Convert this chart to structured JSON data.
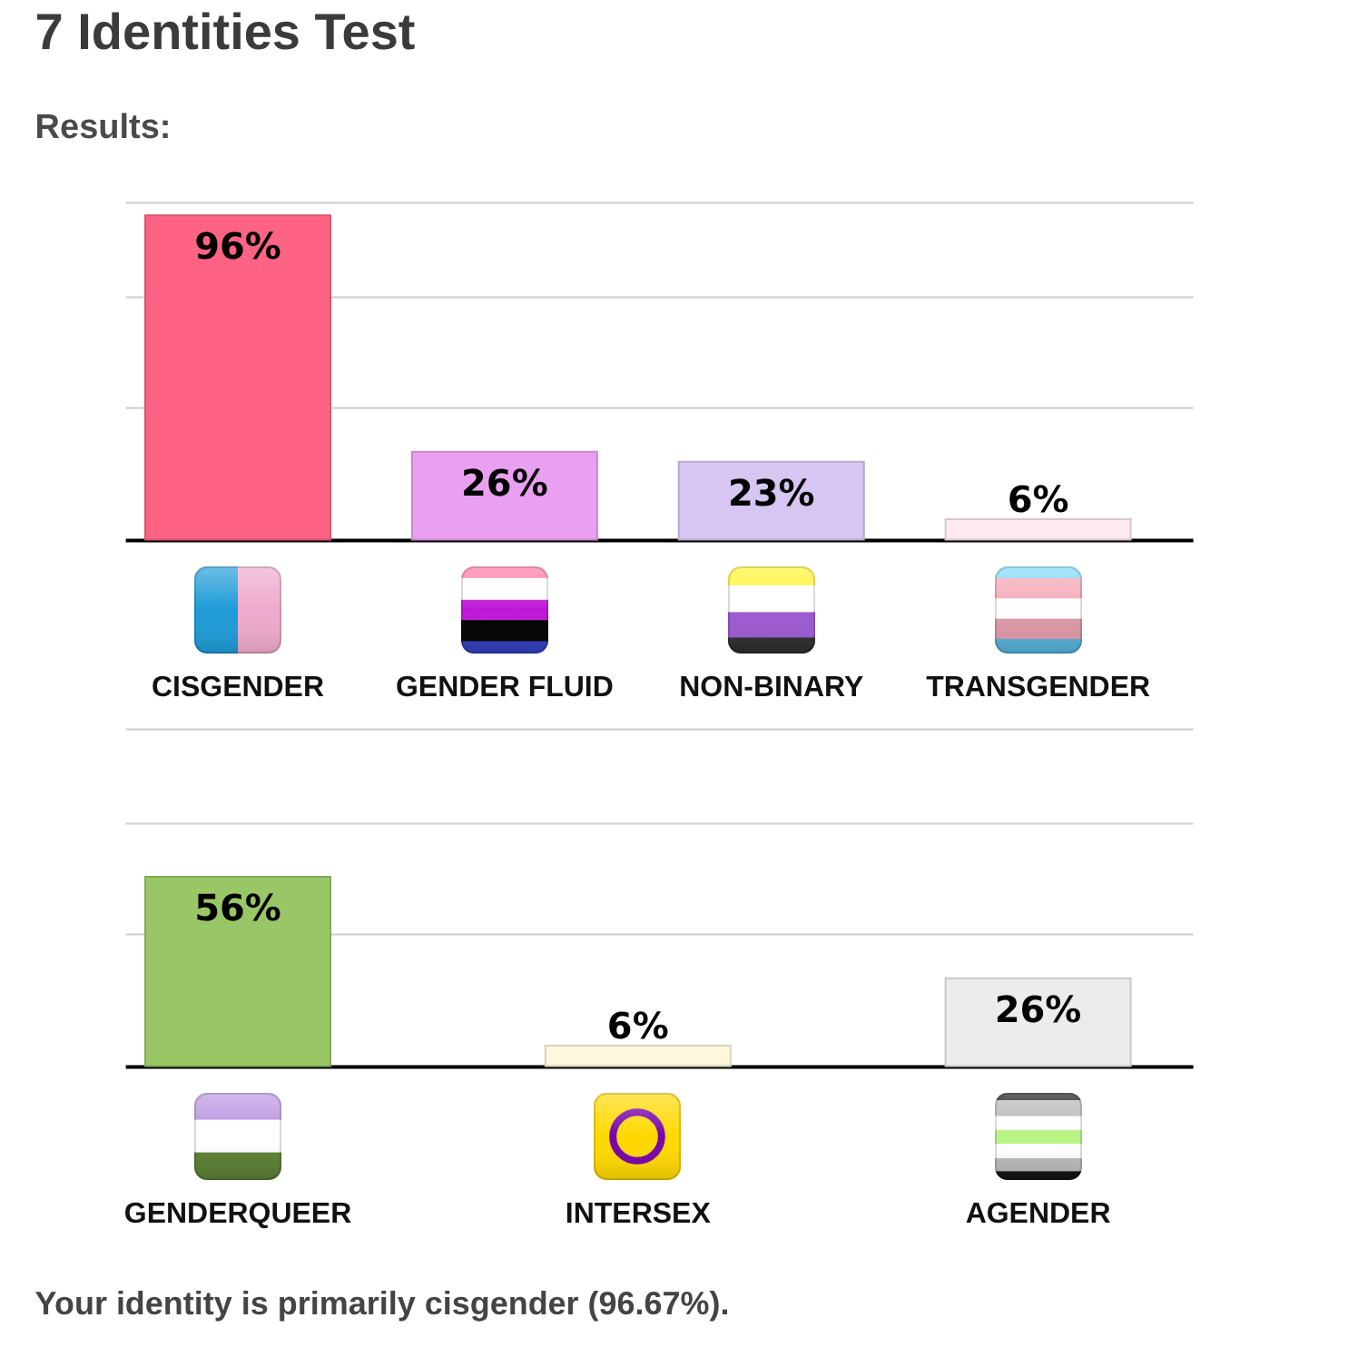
{
  "chart_data": [
    {
      "type": "bar",
      "title": "7 Identities Test",
      "subtitle": "Results:",
      "categories": [
        "CISGENDER",
        "GENDER FLUID",
        "NON-BINARY",
        "TRANSGENDER"
      ],
      "values": [
        96,
        26,
        23,
        6
      ],
      "value_labels": [
        "96%",
        "26%",
        "23%",
        "6%"
      ],
      "colors": [
        "#ff6384",
        "#eaa0f0",
        "#d6c6f1",
        "#fde9ef"
      ],
      "ylim": [
        0,
        100
      ],
      "yticks": [
        {
          "value": 39,
          "label": null
        },
        {
          "value": 72,
          "label": null
        },
        {
          "value": 100,
          "label": null
        }
      ],
      "grid": "y",
      "tick_labels": "x"
    },
    {
      "type": "bar",
      "categories": [
        "GENDERQUEER",
        "INTERSEX",
        "AGENDER"
      ],
      "values": [
        56,
        6,
        26
      ],
      "value_labels": [
        "56%",
        "6%",
        "26%"
      ],
      "colors": [
        "#99c766",
        "#fdf7dc",
        "#ececec"
      ],
      "ylim": [
        0,
        100
      ],
      "yticks": [
        {
          "value": 39,
          "label": null
        },
        {
          "value": 72,
          "label": null
        },
        {
          "value": 100,
          "label": null
        }
      ],
      "grid": "y",
      "tick_labels": "x",
      "annotations": [
        "Your identity is primarily cisgender (96.67%)."
      ]
    }
  ]
}
